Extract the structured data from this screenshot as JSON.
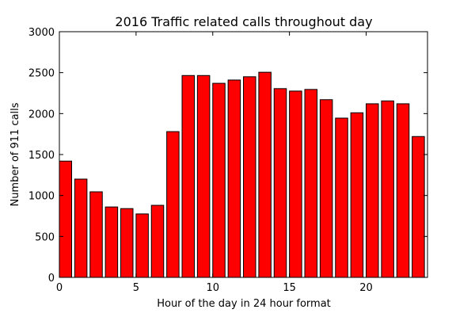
{
  "chart_data": {
    "type": "bar",
    "title": "2016 Traffic related calls throughout day",
    "xlabel": "Hour of the day in 24 hour format",
    "ylabel": "Number of 911 calls",
    "x": [
      0,
      1,
      2,
      3,
      4,
      5,
      6,
      7,
      8,
      9,
      10,
      11,
      12,
      13,
      14,
      15,
      16,
      17,
      18,
      19,
      20,
      21,
      22,
      23
    ],
    "values": [
      1420,
      1200,
      1045,
      860,
      840,
      775,
      880,
      1780,
      2465,
      2465,
      2370,
      2410,
      2450,
      2505,
      2305,
      2275,
      2295,
      2170,
      1945,
      2010,
      2120,
      2155,
      2120,
      1720
    ],
    "xlim": [
      0,
      24
    ],
    "ylim": [
      0,
      3000
    ],
    "xticks": [
      0,
      5,
      10,
      15,
      20
    ],
    "yticks": [
      0,
      500,
      1000,
      1500,
      2000,
      2500,
      3000
    ],
    "bar_color": "#ff0000",
    "edge_color": "#000000",
    "grid": false
  }
}
